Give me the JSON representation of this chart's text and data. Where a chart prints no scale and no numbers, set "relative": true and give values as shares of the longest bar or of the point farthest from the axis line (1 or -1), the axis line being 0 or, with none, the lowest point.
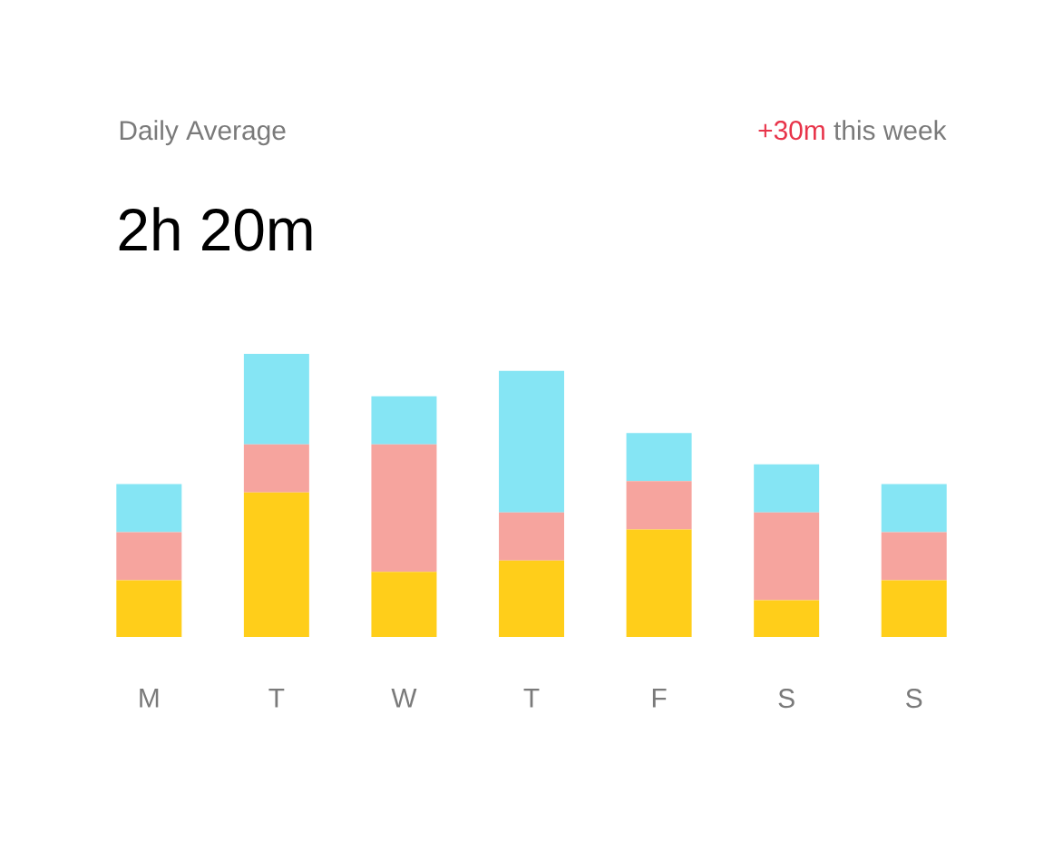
{
  "chart_data": {
    "type": "bar",
    "stacked": true,
    "relative": true,
    "title": "Daily Average",
    "subtitle": "2h 20m",
    "annotations": [
      "+30m",
      "this week"
    ],
    "categories": [
      "M",
      "T",
      "W",
      "T",
      "F",
      "S",
      "S"
    ],
    "series": [
      {
        "color": "#ffce1a",
        "values": [
          0.2,
          0.51,
          0.23,
          0.27,
          0.38,
          0.13,
          0.2
        ]
      },
      {
        "color": "#f6a49e",
        "values": [
          0.17,
          0.17,
          0.45,
          0.17,
          0.17,
          0.31,
          0.17
        ]
      },
      {
        "color": "#85e5f4",
        "values": [
          0.17,
          0.32,
          0.17,
          0.5,
          0.17,
          0.17,
          0.17
        ]
      }
    ]
  }
}
